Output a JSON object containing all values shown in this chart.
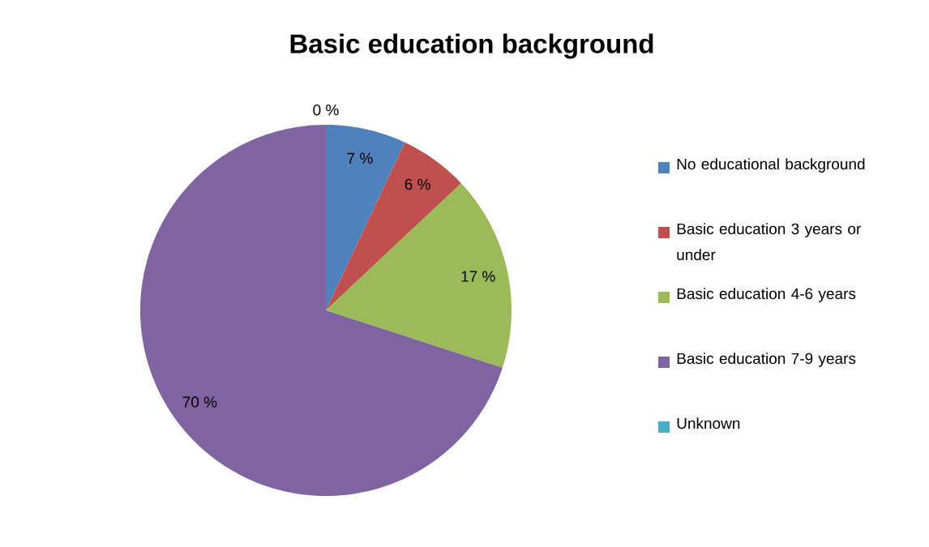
{
  "chart_data": {
    "type": "pie",
    "title": "Basic education background",
    "categories": [
      "No educational background",
      "Basic education 3 years or under",
      "Basic education 4-6 years",
      "Basic education 7-9 years",
      "Unknown"
    ],
    "values": [
      7,
      6,
      17,
      70,
      0
    ],
    "colors": [
      "#4f81bd",
      "#c0504d",
      "#9bbb59",
      "#8064a2",
      "#4bacc6"
    ],
    "value_labels": [
      "7 %",
      "6 %",
      "17 %",
      "70 %",
      "0 %"
    ],
    "legend": "right"
  }
}
